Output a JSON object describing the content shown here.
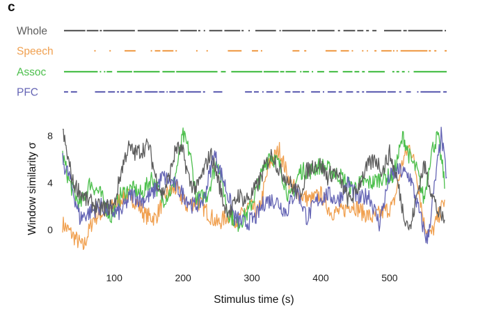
{
  "panel_label": "c",
  "chart_data": {
    "type": "line",
    "xlabel": "Stimulus time (s)",
    "ylabel": "Window similarity σ",
    "xlim": [
      25,
      583
    ],
    "ylim": [
      -2.5,
      9
    ],
    "xticks": [
      100,
      200,
      300,
      400,
      500
    ],
    "yticks": [
      0,
      4,
      8
    ],
    "grid": false,
    "legend": "none",
    "series": [
      {
        "name": "Whole",
        "color": "#5c5c5c",
        "x": [
          25,
          40,
          60,
          80,
          100,
          110,
          120,
          130,
          140,
          150,
          160,
          170,
          180,
          190,
          200,
          210,
          220,
          230,
          240,
          250,
          260,
          270,
          280,
          290,
          300,
          310,
          320,
          330,
          340,
          350,
          360,
          370,
          380,
          390,
          400,
          410,
          420,
          430,
          440,
          450,
          460,
          470,
          480,
          490,
          500,
          510,
          520,
          530,
          540,
          550,
          560,
          570,
          580
        ],
        "y": [
          8.3,
          4.0,
          2.5,
          1.8,
          2.0,
          5.0,
          7.0,
          6.5,
          6.8,
          7.2,
          4.5,
          3.0,
          4.5,
          7.0,
          6.5,
          4.0,
          3.5,
          5.0,
          6.5,
          4.5,
          2.0,
          1.5,
          3.0,
          2.5,
          3.0,
          4.0,
          5.5,
          6.5,
          5.0,
          4.5,
          3.5,
          3.0,
          5.0,
          5.5,
          5.5,
          4.5,
          5.0,
          4.0,
          2.5,
          3.0,
          4.5,
          5.5,
          6.0,
          5.0,
          6.5,
          4.5,
          1.5,
          0.0,
          3.0,
          5.5,
          3.5,
          1.5,
          0.8
        ]
      },
      {
        "name": "Speech",
        "color": "#f0a050",
        "x": [
          25,
          40,
          55,
          70,
          85,
          100,
          115,
          130,
          145,
          160,
          175,
          190,
          205,
          220,
          235,
          250,
          265,
          280,
          295,
          310,
          325,
          340,
          355,
          370,
          385,
          400,
          415,
          430,
          445,
          460,
          475,
          490,
          505,
          520,
          530,
          540,
          550,
          560,
          570,
          580
        ],
        "y": [
          0.5,
          -0.5,
          -1.5,
          1.0,
          1.5,
          2.0,
          3.0,
          2.5,
          1.2,
          1.0,
          3.0,
          3.5,
          2.0,
          2.5,
          1.5,
          0.5,
          1.2,
          0.8,
          2.0,
          1.5,
          5.5,
          6.8,
          4.0,
          3.0,
          2.5,
          3.0,
          1.5,
          1.5,
          2.2,
          1.5,
          1.0,
          1.5,
          2.0,
          6.0,
          7.2,
          4.5,
          0.5,
          -0.5,
          1.0,
          2.5
        ]
      },
      {
        "name": "Assoc",
        "color": "#4cbf4c",
        "x": [
          25,
          35,
          50,
          65,
          80,
          95,
          110,
          125,
          140,
          155,
          170,
          185,
          200,
          210,
          220,
          235,
          250,
          265,
          280,
          295,
          310,
          325,
          340,
          355,
          370,
          385,
          400,
          415,
          430,
          445,
          460,
          475,
          490,
          505,
          520,
          530,
          540,
          550,
          560,
          570,
          580
        ],
        "y": [
          6.3,
          4.0,
          2.0,
          4.0,
          3.0,
          1.0,
          3.0,
          3.5,
          3.0,
          4.5,
          2.5,
          3.5,
          8.0,
          6.5,
          2.5,
          3.0,
          6.0,
          1.5,
          0.5,
          1.5,
          4.0,
          6.5,
          5.5,
          2.5,
          5.0,
          5.0,
          5.5,
          5.0,
          4.5,
          3.5,
          4.0,
          4.0,
          4.5,
          4.5,
          8.0,
          6.0,
          5.0,
          2.5,
          6.5,
          8.0,
          4.0
        ]
      },
      {
        "name": "PFC",
        "color": "#6464b4",
        "x": [
          25,
          35,
          50,
          65,
          80,
          95,
          110,
          125,
          140,
          155,
          170,
          185,
          200,
          215,
          230,
          245,
          260,
          275,
          290,
          305,
          320,
          335,
          350,
          365,
          380,
          395,
          410,
          425,
          440,
          455,
          470,
          485,
          500,
          515,
          530,
          545,
          555,
          565,
          575,
          583
        ],
        "y": [
          5.8,
          4.5,
          1.0,
          1.5,
          2.0,
          1.5,
          1.5,
          3.0,
          2.5,
          3.0,
          4.5,
          4.0,
          3.0,
          2.0,
          2.5,
          6.5,
          4.0,
          1.0,
          0.5,
          1.0,
          2.5,
          2.5,
          1.5,
          3.5,
          1.0,
          2.5,
          3.0,
          2.5,
          4.0,
          2.5,
          3.0,
          0.5,
          4.5,
          5.0,
          4.5,
          1.0,
          -1.0,
          3.5,
          8.0,
          4.5
        ]
      }
    ],
    "rasters": [
      {
        "name": "Whole",
        "color": "#5c5c5c",
        "segments": [
          [
            27,
            58
          ],
          [
            60,
            77
          ],
          [
            79,
            82
          ],
          [
            84,
            130
          ],
          [
            134,
            193
          ],
          [
            196,
            220
          ],
          [
            222,
            225
          ],
          [
            230,
            232
          ],
          [
            238,
            257
          ],
          [
            260,
            283
          ],
          [
            285,
            288
          ],
          [
            295,
            297
          ],
          [
            305,
            335
          ],
          [
            340,
            342
          ],
          [
            344,
            385
          ],
          [
            387,
            392
          ],
          [
            395,
            420
          ],
          [
            425,
            428
          ],
          [
            433,
            450
          ],
          [
            453,
            462
          ],
          [
            466,
            470
          ],
          [
            475,
            481
          ],
          [
            492,
            517
          ],
          [
            520,
            525
          ],
          [
            527,
            577
          ],
          [
            580,
            582
          ]
        ]
      },
      {
        "name": "Speech",
        "color": "#f0a050",
        "segments": [
          [
            71,
            73
          ],
          [
            93,
            95
          ],
          [
            115,
            131
          ],
          [
            153,
            155
          ],
          [
            159,
            167
          ],
          [
            170,
            186
          ],
          [
            189,
            191
          ],
          [
            219,
            221
          ],
          [
            234,
            236
          ],
          [
            265,
            285
          ],
          [
            300,
            309
          ],
          [
            313,
            315
          ],
          [
            359,
            369
          ],
          [
            376,
            379
          ],
          [
            407,
            423
          ],
          [
            429,
            441
          ],
          [
            445,
            447
          ],
          [
            460,
            462
          ],
          [
            467,
            468
          ],
          [
            478,
            481
          ],
          [
            488,
            503
          ],
          [
            505,
            507
          ],
          [
            510,
            512
          ],
          [
            516,
            555
          ],
          [
            557,
            560
          ],
          [
            565,
            568
          ],
          [
            580,
            583
          ]
        ]
      },
      {
        "name": "Assoc",
        "color": "#4cbf4c",
        "segments": [
          [
            27,
            76
          ],
          [
            79,
            81
          ],
          [
            85,
            87
          ],
          [
            89,
            97
          ],
          [
            104,
            126
          ],
          [
            128,
            166
          ],
          [
            170,
            188
          ],
          [
            190,
            250
          ],
          [
            255,
            262
          ],
          [
            270,
            315
          ],
          [
            317,
            339
          ],
          [
            341,
            347
          ],
          [
            349,
            364
          ],
          [
            370,
            372
          ],
          [
            374,
            383
          ],
          [
            387,
            389
          ],
          [
            395,
            405
          ],
          [
            412,
            425
          ],
          [
            432,
            446
          ],
          [
            449,
            456
          ],
          [
            460,
            464
          ],
          [
            469,
            493
          ],
          [
            504,
            507
          ],
          [
            510,
            514
          ],
          [
            518,
            522
          ],
          [
            527,
            527
          ],
          [
            535,
            583
          ]
        ]
      },
      {
        "name": "PFC",
        "color": "#6464b4",
        "segments": [
          [
            27,
            33
          ],
          [
            37,
            46
          ],
          [
            72,
            87
          ],
          [
            91,
            101
          ],
          [
            104,
            107
          ],
          [
            109,
            115
          ],
          [
            119,
            126
          ],
          [
            131,
            140
          ],
          [
            144,
            163
          ],
          [
            165,
            173
          ],
          [
            176,
            177
          ],
          [
            180,
            189
          ],
          [
            192,
            201
          ],
          [
            204,
            226
          ],
          [
            229,
            232
          ],
          [
            244,
            257
          ],
          [
            290,
            300
          ],
          [
            303,
            310
          ],
          [
            315,
            317
          ],
          [
            321,
            331
          ],
          [
            335,
            339
          ],
          [
            348,
            356
          ],
          [
            359,
            370
          ],
          [
            372,
            376
          ],
          [
            386,
            399
          ],
          [
            403,
            405
          ],
          [
            410,
            422
          ],
          [
            426,
            431
          ],
          [
            437,
            447
          ],
          [
            452,
            456
          ],
          [
            460,
            463
          ],
          [
            466,
            495
          ],
          [
            497,
            509
          ],
          [
            514,
            517
          ],
          [
            524,
            531
          ],
          [
            540,
            542
          ],
          [
            545,
            574
          ],
          [
            578,
            583
          ]
        ]
      }
    ]
  }
}
